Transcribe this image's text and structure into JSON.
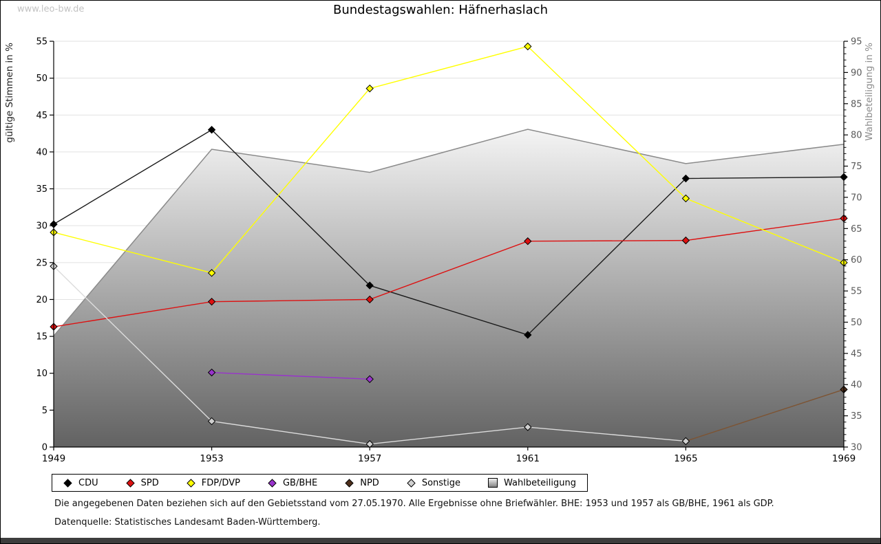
{
  "page": {
    "watermark": "www.leo-bw.de",
    "title": "Bundestagswahlen: Häfnerhaslach"
  },
  "footnotes": {
    "line1": "Die angegebenen Daten beziehen sich auf den Gebietsstand vom 27.05.1970. Alle Ergebnisse ohne Briefwähler. BHE: 1953 und 1957 als GB/BHE, 1961 als GDP.",
    "line2": "Datenquelle: Statistisches Landesamt Baden-Württemberg."
  },
  "chart_data": {
    "type": "line",
    "title": "Bundestagswahlen: Häfnerhaslach",
    "x": [
      1949,
      1953,
      1957,
      1961,
      1965,
      1969
    ],
    "grid": true,
    "legend_position": "bottom",
    "left_axis": {
      "label": "gültige Stimmen in %",
      "min": 0,
      "max": 55,
      "step": 5
    },
    "right_axis": {
      "label": "Wahlbeteiligung in %",
      "min": 30,
      "max": 95,
      "step": 5,
      "minor_step": 1
    },
    "series": [
      {
        "name": "CDU",
        "color": "#000000",
        "line_color": "#1a1a1a",
        "axis": "left",
        "values": [
          30.2,
          43.0,
          21.9,
          15.2,
          36.4,
          36.6
        ]
      },
      {
        "name": "SPD",
        "color": "#dd1111",
        "line_color": "#dd1111",
        "axis": "left",
        "values": [
          16.3,
          19.7,
          20.0,
          27.9,
          28.0,
          31.0
        ]
      },
      {
        "name": "FDP/DVP",
        "color": "#ffff00",
        "line_color": "#ffff00",
        "axis": "left",
        "values": [
          29.1,
          23.6,
          48.6,
          54.3,
          33.7,
          25.0
        ]
      },
      {
        "name": "GB/BHE",
        "color": "#9933cc",
        "line_color": "#9933cc",
        "axis": "left",
        "values": [
          null,
          10.1,
          9.2,
          null,
          null,
          null
        ]
      },
      {
        "name": "NPD",
        "color": "#4e2f1b",
        "line_color": "#7d5433",
        "axis": "left",
        "values": [
          null,
          null,
          null,
          null,
          0.8,
          7.8
        ]
      },
      {
        "name": "Sonstige",
        "color": "#d0d0d0",
        "line_color": "#dcdcdc",
        "axis": "left",
        "values": [
          24.5,
          3.5,
          0.4,
          2.7,
          0.8,
          null
        ]
      }
    ],
    "area_series": {
      "name": "Wahlbeteiligung",
      "axis": "right",
      "values": [
        47.8,
        77.7,
        74.0,
        80.9,
        75.4,
        78.5
      ],
      "edge_color": "#8a8a8a",
      "fill_top": "#f4f4f4",
      "fill_bottom": "#626262"
    }
  }
}
